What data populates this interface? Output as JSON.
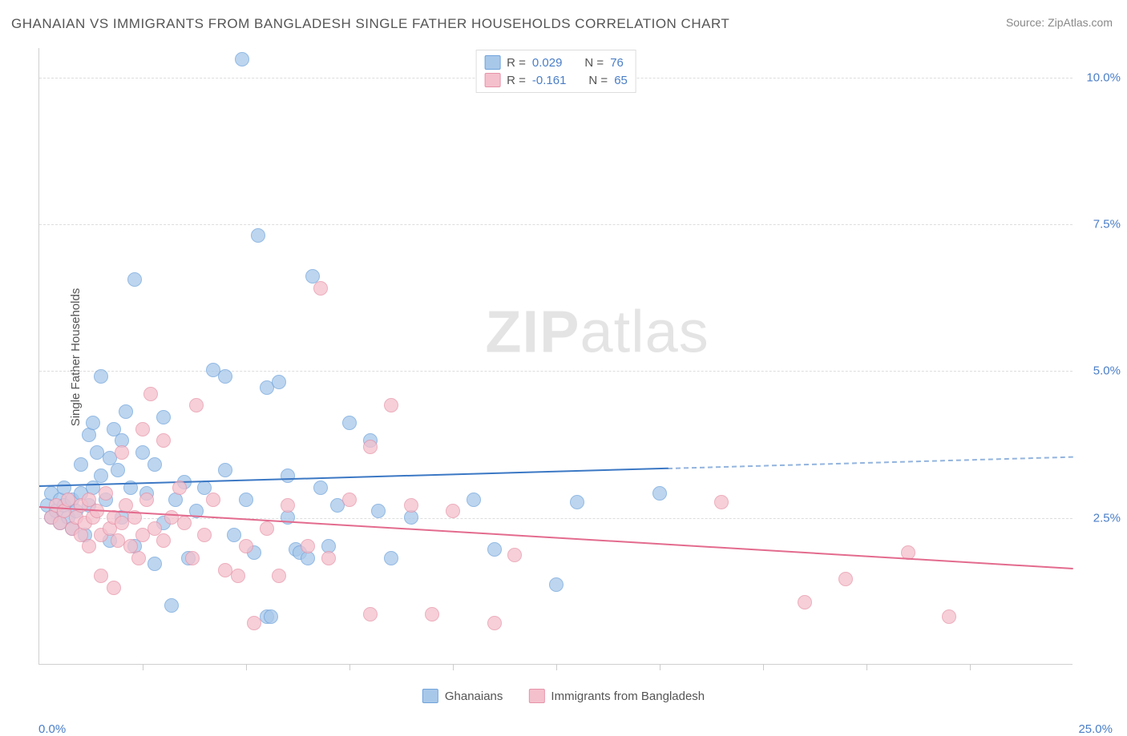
{
  "title": "GHANAIAN VS IMMIGRANTS FROM BANGLADESH SINGLE FATHER HOUSEHOLDS CORRELATION CHART",
  "source": "Source: ZipAtlas.com",
  "y_axis_label": "Single Father Households",
  "watermark_bold": "ZIP",
  "watermark_light": "atlas",
  "chart": {
    "type": "scatter",
    "xlim": [
      0,
      25
    ],
    "ylim": [
      0,
      10.5
    ],
    "x_min_label": "0.0%",
    "x_max_label": "25.0%",
    "y_ticks": [
      {
        "value": 2.5,
        "label": "2.5%"
      },
      {
        "value": 5.0,
        "label": "5.0%"
      },
      {
        "value": 7.5,
        "label": "7.5%"
      },
      {
        "value": 10.0,
        "label": "10.0%"
      }
    ],
    "x_tick_positions": [
      2.5,
      5,
      7.5,
      10,
      12.5,
      15,
      17.5,
      20,
      22.5
    ],
    "grid_color": "#dddddd",
    "background_color": "#ffffff",
    "series": [
      {
        "name": "Ghanaians",
        "fill_color": "#a8c8ea",
        "stroke_color": "#6fa3db",
        "R": "0.029",
        "N": "76",
        "trend": {
          "y_start": 3.05,
          "y_end": 3.55,
          "solid_x_end": 15.2,
          "line_color": "#3b78c4"
        },
        "points": [
          [
            0.2,
            2.7
          ],
          [
            0.3,
            2.5
          ],
          [
            0.3,
            2.9
          ],
          [
            0.4,
            2.6
          ],
          [
            0.5,
            2.8
          ],
          [
            0.5,
            2.4
          ],
          [
            0.6,
            2.7
          ],
          [
            0.6,
            3.0
          ],
          [
            0.7,
            2.5
          ],
          [
            0.8,
            2.3
          ],
          [
            0.8,
            2.8
          ],
          [
            0.9,
            2.6
          ],
          [
            1.0,
            2.9
          ],
          [
            1.0,
            3.4
          ],
          [
            1.1,
            2.2
          ],
          [
            1.2,
            3.9
          ],
          [
            1.2,
            2.7
          ],
          [
            1.3,
            4.1
          ],
          [
            1.3,
            3.0
          ],
          [
            1.4,
            3.6
          ],
          [
            1.5,
            3.2
          ],
          [
            1.5,
            4.9
          ],
          [
            1.6,
            2.8
          ],
          [
            1.7,
            3.5
          ],
          [
            1.7,
            2.1
          ],
          [
            1.8,
            4.0
          ],
          [
            1.9,
            3.3
          ],
          [
            2.0,
            2.5
          ],
          [
            2.0,
            3.8
          ],
          [
            2.1,
            4.3
          ],
          [
            2.2,
            3.0
          ],
          [
            2.3,
            2.0
          ],
          [
            2.3,
            6.55
          ],
          [
            2.5,
            3.6
          ],
          [
            2.6,
            2.9
          ],
          [
            2.8,
            3.4
          ],
          [
            2.8,
            1.7
          ],
          [
            3.0,
            4.2
          ],
          [
            3.0,
            2.4
          ],
          [
            3.2,
            1.0
          ],
          [
            3.3,
            2.8
          ],
          [
            3.5,
            3.1
          ],
          [
            3.6,
            1.8
          ],
          [
            3.8,
            2.6
          ],
          [
            4.0,
            3.0
          ],
          [
            4.2,
            5.0
          ],
          [
            4.5,
            3.3
          ],
          [
            4.5,
            4.9
          ],
          [
            4.7,
            2.2
          ],
          [
            4.9,
            10.3
          ],
          [
            5.0,
            2.8
          ],
          [
            5.2,
            1.9
          ],
          [
            5.3,
            7.3
          ],
          [
            5.5,
            4.7
          ],
          [
            5.5,
            0.8
          ],
          [
            5.6,
            0.8
          ],
          [
            5.8,
            4.8
          ],
          [
            6.0,
            2.5
          ],
          [
            6.0,
            3.2
          ],
          [
            6.2,
            1.95
          ],
          [
            6.3,
            1.9
          ],
          [
            6.5,
            1.8
          ],
          [
            6.6,
            6.6
          ],
          [
            6.8,
            3.0
          ],
          [
            7.0,
            2.0
          ],
          [
            7.2,
            2.7
          ],
          [
            7.5,
            4.1
          ],
          [
            8.0,
            3.8
          ],
          [
            8.2,
            2.6
          ],
          [
            8.5,
            1.8
          ],
          [
            9.0,
            2.5
          ],
          [
            10.5,
            2.8
          ],
          [
            11.0,
            1.95
          ],
          [
            12.5,
            1.35
          ],
          [
            13.0,
            2.75
          ],
          [
            15.0,
            2.9
          ]
        ]
      },
      {
        "name": "Immigrants from Bangladesh",
        "fill_color": "#f4c0cc",
        "stroke_color": "#e793a8",
        "R": "-0.161",
        "N": "65",
        "trend": {
          "y_start": 2.7,
          "y_end": 1.65,
          "solid_x_end": 25,
          "line_color": "#e36b8e"
        },
        "points": [
          [
            0.3,
            2.5
          ],
          [
            0.4,
            2.7
          ],
          [
            0.5,
            2.4
          ],
          [
            0.6,
            2.6
          ],
          [
            0.7,
            2.8
          ],
          [
            0.8,
            2.3
          ],
          [
            0.9,
            2.5
          ],
          [
            1.0,
            2.7
          ],
          [
            1.0,
            2.2
          ],
          [
            1.1,
            2.4
          ],
          [
            1.2,
            2.8
          ],
          [
            1.2,
            2.0
          ],
          [
            1.3,
            2.5
          ],
          [
            1.4,
            2.6
          ],
          [
            1.5,
            2.2
          ],
          [
            1.5,
            1.5
          ],
          [
            1.6,
            2.9
          ],
          [
            1.7,
            2.3
          ],
          [
            1.8,
            2.5
          ],
          [
            1.8,
            1.3
          ],
          [
            1.9,
            2.1
          ],
          [
            2.0,
            2.4
          ],
          [
            2.0,
            3.6
          ],
          [
            2.1,
            2.7
          ],
          [
            2.2,
            2.0
          ],
          [
            2.3,
            2.5
          ],
          [
            2.4,
            1.8
          ],
          [
            2.5,
            2.2
          ],
          [
            2.5,
            4.0
          ],
          [
            2.6,
            2.8
          ],
          [
            2.7,
            4.6
          ],
          [
            2.8,
            2.3
          ],
          [
            3.0,
            3.8
          ],
          [
            3.0,
            2.1
          ],
          [
            3.2,
            2.5
          ],
          [
            3.4,
            3.0
          ],
          [
            3.5,
            2.4
          ],
          [
            3.7,
            1.8
          ],
          [
            3.8,
            4.4
          ],
          [
            4.0,
            2.2
          ],
          [
            4.2,
            2.8
          ],
          [
            4.5,
            1.6
          ],
          [
            4.8,
            1.5
          ],
          [
            5.0,
            2.0
          ],
          [
            5.2,
            0.7
          ],
          [
            5.5,
            2.3
          ],
          [
            5.8,
            1.5
          ],
          [
            6.0,
            2.7
          ],
          [
            6.5,
            2.0
          ],
          [
            6.8,
            6.4
          ],
          [
            7.0,
            1.8
          ],
          [
            7.5,
            2.8
          ],
          [
            8.0,
            0.85
          ],
          [
            8.0,
            3.7
          ],
          [
            8.5,
            4.4
          ],
          [
            9.0,
            2.7
          ],
          [
            9.5,
            0.85
          ],
          [
            10.0,
            2.6
          ],
          [
            11.0,
            0.7
          ],
          [
            11.5,
            1.85
          ],
          [
            16.5,
            2.75
          ],
          [
            18.5,
            1.05
          ],
          [
            19.5,
            1.45
          ],
          [
            21.0,
            1.9
          ],
          [
            22.0,
            0.8
          ]
        ]
      }
    ]
  },
  "legend_top_labels": {
    "R_prefix": "R = ",
    "N_prefix": "N = "
  },
  "legend_bottom": [
    {
      "label": "Ghanaians",
      "fill": "#a8c8ea",
      "stroke": "#6fa3db"
    },
    {
      "label": "Immigrants from Bangladesh",
      "fill": "#f4c0cc",
      "stroke": "#e793a8"
    }
  ]
}
